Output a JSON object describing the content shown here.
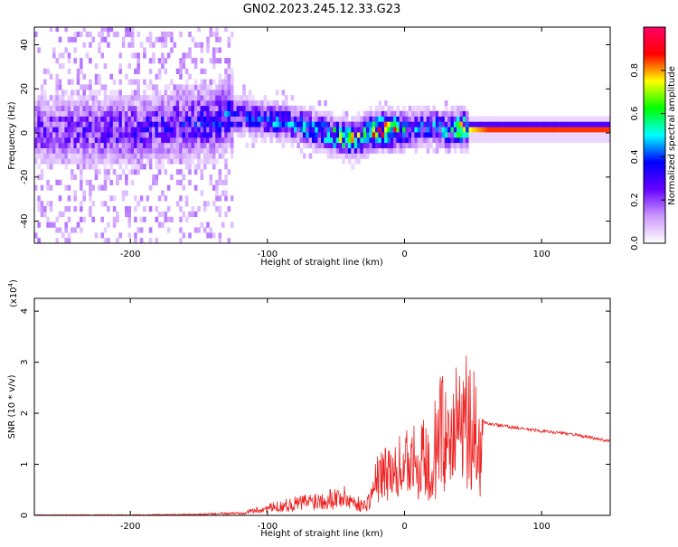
{
  "title": "GN02.2023.245.12.33.G23",
  "colors": {
    "snr_line": "#ee2222",
    "axis": "#000000",
    "background": "#ffffff"
  },
  "colorbar": {
    "label": "Normalized spectral amplitude",
    "ticks": [
      "0.0",
      "0.2",
      "0.4",
      "0.6",
      "0.8"
    ],
    "range": [
      0,
      1
    ],
    "stops": [
      "#ffffff",
      "#cc99ff",
      "#6600ff",
      "#0000ff",
      "#00ffff",
      "#00ff00",
      "#ffff00",
      "#ff0000",
      "#ff0066"
    ]
  },
  "chart_data": [
    {
      "type": "heatmap",
      "xlabel": "Height of straight line (km)",
      "ylabel": "Frequency (Hz)",
      "xlim": [
        -270,
        150
      ],
      "ylim": [
        -50,
        48
      ],
      "xticks": [
        -200,
        -100,
        0,
        100
      ],
      "xtick_labels": [
        "-200",
        "-100",
        "0",
        "100"
      ],
      "yticks": [
        -40,
        -20,
        0,
        20,
        40
      ],
      "ytick_labels": [
        "-40",
        "-20",
        "0",
        "20",
        "40"
      ],
      "ridge": {
        "x": [
          -270,
          -200,
          -140,
          -130,
          -110,
          -90,
          -70,
          -55,
          -40,
          -30,
          -20,
          -10,
          0,
          10,
          20,
          30,
          40,
          60,
          100,
          150
        ],
        "y": [
          0,
          0,
          4,
          8,
          5,
          4,
          1,
          -2,
          -4,
          -2,
          0,
          0,
          0,
          1,
          2,
          0,
          1,
          1,
          1,
          1
        ],
        "amplitude": [
          0.25,
          0.3,
          0.35,
          0.4,
          0.4,
          0.45,
          0.5,
          0.6,
          0.7,
          0.75,
          0.8,
          0.85,
          0.45,
          0.4,
          0.45,
          0.5,
          0.7,
          0.85,
          0.85,
          0.85
        ]
      }
    },
    {
      "type": "line",
      "xlabel": "Height of straight line (km)",
      "ylabel": "SNR (10 * v/v)",
      "multiplier": "(x10",
      "multiplier_exp": "4",
      "xlim": [
        -270,
        150
      ],
      "ylim": [
        0,
        4.25
      ],
      "xticks": [
        -200,
        -100,
        0,
        100
      ],
      "xtick_labels": [
        "-200",
        "-100",
        "0",
        "100"
      ],
      "yticks": [
        0,
        1,
        2,
        3,
        4
      ],
      "ytick_labels": [
        "0",
        "1",
        "2",
        "3",
        "4"
      ],
      "series": [
        {
          "x": [
            -270,
            -200,
            -150,
            -120,
            -100,
            -80,
            -60,
            -45,
            -30,
            -25,
            -20,
            -15,
            -10,
            -5,
            0,
            5,
            10,
            20,
            30,
            40,
            45,
            50,
            55,
            57,
            60,
            80,
            100,
            120,
            140,
            150
          ],
          "y": [
            0.01,
            0.01,
            0.02,
            0.05,
            0.15,
            0.25,
            0.35,
            0.4,
            0.2,
            0.35,
            0.8,
            0.9,
            1.0,
            1.2,
            1.4,
            1.4,
            1.5,
            2.0,
            2.3,
            2.5,
            2.6,
            2.4,
            2.0,
            1.85,
            1.8,
            1.72,
            1.65,
            1.6,
            1.5,
            1.45
          ]
        }
      ]
    }
  ]
}
